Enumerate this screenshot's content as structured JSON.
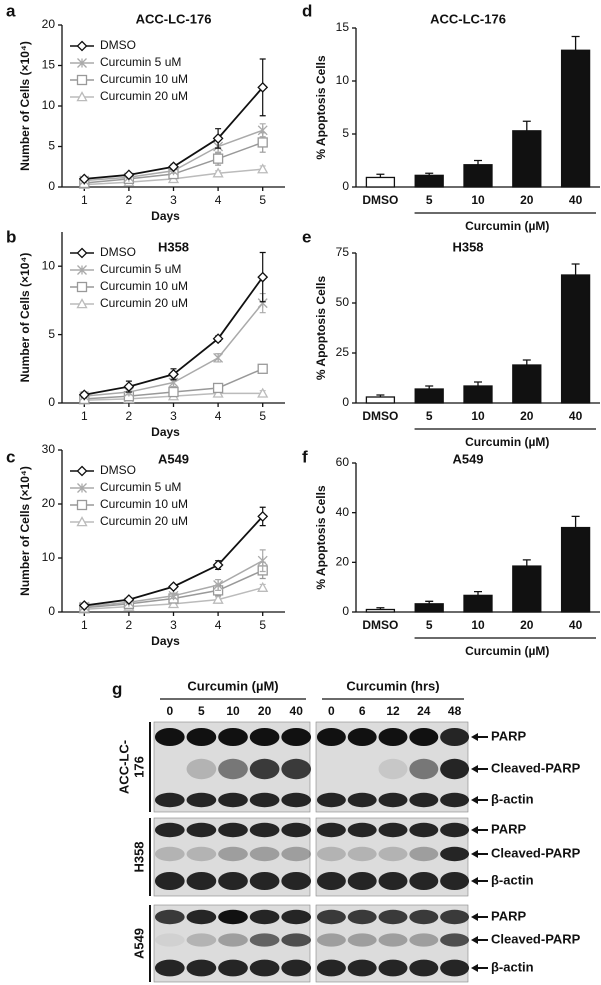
{
  "chart_data": [
    {
      "type": "line",
      "panel": "a",
      "title": "ACC-LC-176",
      "x": [
        1,
        2,
        3,
        4,
        5
      ],
      "xlim": [
        0.5,
        5.5
      ],
      "xticks": [
        1,
        2,
        3,
        4,
        5
      ],
      "xlabel": "Days",
      "ylabel": "Number of Cells (×10⁴)",
      "ylim": [
        0,
        20
      ],
      "yticks": [
        0,
        5,
        10,
        15,
        20
      ],
      "legend": "upper left",
      "series": [
        {
          "name": "DMSO",
          "color": "#111111",
          "marker": "diamond",
          "values": [
            1.0,
            1.5,
            2.5,
            6.0,
            12.3
          ],
          "errors": [
            0.15,
            0.2,
            0.3,
            1.2,
            3.5
          ]
        },
        {
          "name": "Curcumin 5 uM",
          "color": "#aaaaaa",
          "marker": "asterisk",
          "values": [
            0.8,
            1.2,
            2.0,
            5.0,
            7.0
          ],
          "errors": [
            0.1,
            0.2,
            0.3,
            0.8,
            0.8
          ]
        },
        {
          "name": "Curcumin 10 uM",
          "color": "#999999",
          "marker": "square",
          "values": [
            0.5,
            1.0,
            1.6,
            3.5,
            5.5
          ],
          "errors": [
            0.1,
            0.15,
            0.3,
            0.8,
            1.2
          ]
        },
        {
          "name": "Curcumin 20 uM",
          "color": "#bbbbbb",
          "marker": "triangle",
          "values": [
            0.3,
            0.6,
            1.0,
            1.7,
            2.2
          ],
          "errors": [
            0.1,
            0.1,
            0.2,
            0.3,
            0.4
          ]
        }
      ]
    },
    {
      "type": "line",
      "panel": "b",
      "title": "H358",
      "x": [
        1,
        2,
        3,
        4,
        5
      ],
      "xlim": [
        0.5,
        5.5
      ],
      "xticks": [
        1,
        2,
        3,
        4,
        5
      ],
      "xlabel": "Days",
      "ylabel": "Number of Cells (×10⁴)",
      "ylim": [
        0,
        12.5
      ],
      "yticks": [
        0,
        5,
        10
      ],
      "legend": "upper left",
      "series": [
        {
          "name": "DMSO",
          "color": "#111111",
          "marker": "diamond",
          "values": [
            0.6,
            1.2,
            2.1,
            4.7,
            9.2
          ],
          "errors": [
            0.2,
            0.4,
            0.4,
            0.2,
            1.8
          ]
        },
        {
          "name": "Curcumin 5 uM",
          "color": "#aaaaaa",
          "marker": "asterisk",
          "values": [
            0.5,
            0.8,
            1.5,
            3.3,
            7.3
          ],
          "errors": [
            0.1,
            0.2,
            0.3,
            0.3,
            0.7
          ]
        },
        {
          "name": "Curcumin 10 uM",
          "color": "#999999",
          "marker": "square",
          "values": [
            0.3,
            0.5,
            0.8,
            1.1,
            2.5
          ],
          "errors": [
            0.1,
            0.1,
            0.2,
            0.3,
            0.3
          ]
        },
        {
          "name": "Curcumin 20 uM",
          "color": "#bbbbbb",
          "marker": "triangle",
          "values": [
            0.2,
            0.3,
            0.5,
            0.7,
            0.7
          ],
          "errors": [
            0.1,
            0.1,
            0.1,
            0.2,
            0.2
          ]
        }
      ]
    },
    {
      "type": "line",
      "panel": "c",
      "title": "A549",
      "x": [
        1,
        2,
        3,
        4,
        5
      ],
      "xlim": [
        0.5,
        5.5
      ],
      "xticks": [
        1,
        2,
        3,
        4,
        5
      ],
      "xlabel": "Days",
      "ylabel": "Number of Cells (×10⁴)",
      "ylim": [
        0,
        30
      ],
      "yticks": [
        0,
        10,
        20,
        30
      ],
      "legend": "upper left",
      "series": [
        {
          "name": "DMSO",
          "color": "#111111",
          "marker": "diamond",
          "values": [
            1.2,
            2.3,
            4.7,
            8.7,
            17.7
          ],
          "errors": [
            0.3,
            0.3,
            0.4,
            0.8,
            1.7
          ]
        },
        {
          "name": "Curcumin 5 uM",
          "color": "#aaaaaa",
          "marker": "asterisk",
          "values": [
            1.0,
            1.8,
            3.0,
            5.0,
            9.5
          ],
          "errors": [
            0.3,
            0.3,
            0.5,
            1.0,
            2.0
          ]
        },
        {
          "name": "Curcumin 10 uM",
          "color": "#999999",
          "marker": "square",
          "values": [
            0.8,
            1.5,
            2.5,
            4.0,
            7.7
          ],
          "errors": [
            0.2,
            0.3,
            0.5,
            1.0,
            1.5
          ]
        },
        {
          "name": "Curcumin 20 uM",
          "color": "#bbbbbb",
          "marker": "triangle",
          "values": [
            0.5,
            1.0,
            1.5,
            2.3,
            4.5
          ],
          "errors": [
            0.1,
            0.2,
            0.3,
            0.5,
            0.6
          ]
        }
      ]
    },
    {
      "type": "bar",
      "panel": "d",
      "title": "ACC-LC-176",
      "categories": [
        "DMSO",
        "5",
        "10",
        "20",
        "40"
      ],
      "values": [
        0.9,
        1.1,
        2.1,
        5.3,
        12.9
      ],
      "errors": [
        0.3,
        0.2,
        0.4,
        0.9,
        1.3
      ],
      "colors": [
        "#ffffff",
        "#111111",
        "#111111",
        "#111111",
        "#111111"
      ],
      "xlabel": "Curcumin (µM)",
      "ylabel": "% Apoptosis Cells",
      "ylim": [
        0,
        15
      ],
      "yticks": [
        0,
        5,
        10,
        15
      ]
    },
    {
      "type": "bar",
      "panel": "e",
      "title": "H358",
      "categories": [
        "DMSO",
        "5",
        "10",
        "20",
        "40"
      ],
      "values": [
        3,
        7,
        8.5,
        19,
        64
      ],
      "errors": [
        1,
        1.5,
        2,
        2.5,
        5.5
      ],
      "colors": [
        "#ffffff",
        "#111111",
        "#111111",
        "#111111",
        "#111111"
      ],
      "xlabel": "Curcumin (µM)",
      "ylabel": "% Apoptosis Cells",
      "ylim": [
        0,
        75
      ],
      "yticks": [
        0,
        25,
        50,
        75
      ]
    },
    {
      "type": "bar",
      "panel": "f",
      "title": "A549",
      "categories": [
        "DMSO",
        "5",
        "10",
        "20",
        "40"
      ],
      "values": [
        1,
        3.3,
        6.7,
        18.5,
        34
      ],
      "errors": [
        0.7,
        1,
        1.5,
        2.5,
        4.5
      ],
      "colors": [
        "#ffffff",
        "#111111",
        "#111111",
        "#111111",
        "#111111"
      ],
      "xlabel": "Curcumin (µM)",
      "ylabel": "% Apoptosis Cells",
      "ylim": [
        0,
        60
      ],
      "yticks": [
        0,
        20,
        40,
        60
      ]
    }
  ],
  "blot": {
    "panel": "g",
    "groups": [
      {
        "title": "Curcumin (µM)",
        "lanes": [
          "0",
          "5",
          "10",
          "20",
          "40"
        ]
      },
      {
        "title": "Curcumin (hrs)",
        "lanes": [
          "0",
          "6",
          "12",
          "24",
          "48"
        ]
      }
    ],
    "rows": [
      {
        "cell_line": [
          "ACC-LC-",
          "176"
        ],
        "bands": [
          "PARP",
          "Cleaved-PARP",
          "β-actin"
        ]
      },
      {
        "cell_line": [
          "H358"
        ],
        "bands": [
          "PARP",
          "Cleaved-PARP",
          "β-actin"
        ]
      },
      {
        "cell_line": [
          "A549"
        ],
        "bands": [
          "PARP",
          "Cleaved-PARP",
          "β-actin"
        ]
      }
    ]
  }
}
